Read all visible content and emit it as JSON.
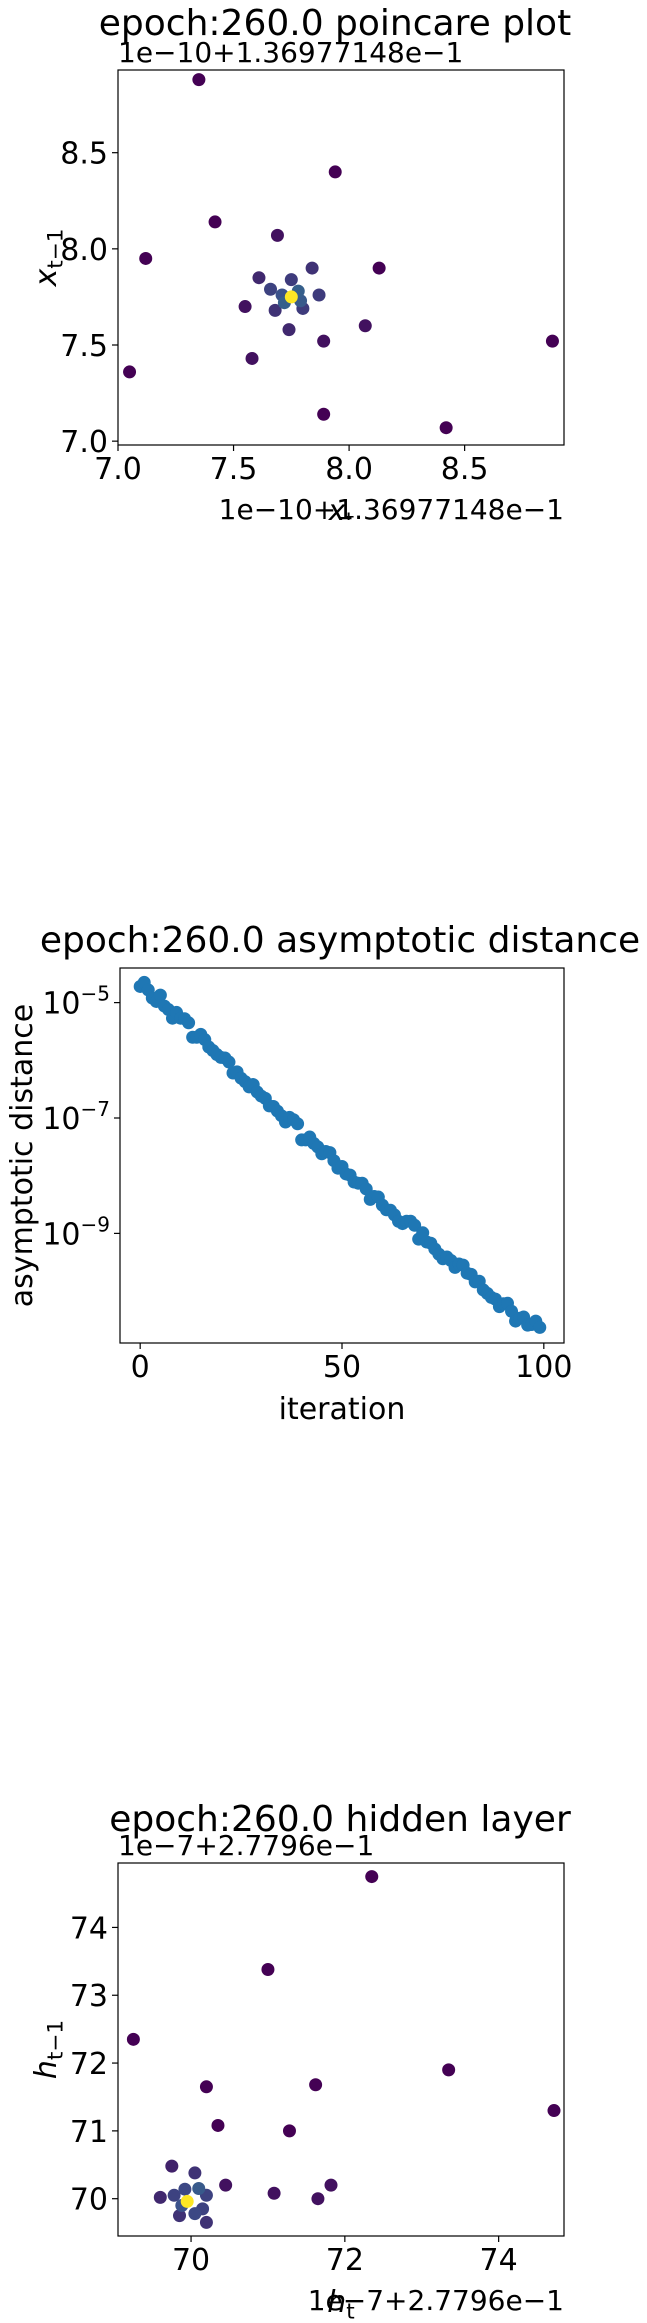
{
  "chart_data": [
    {
      "type": "scatter",
      "title": "epoch:260.0 poincare plot",
      "offset_label_x": "1e−10+1.36977148e−1",
      "offset_label_y": "1e−10+1.36977148e−1",
      "xlabel": "x_t",
      "ylabel": "x_{t−1}",
      "xlim": [
        7.0,
        8.93
      ],
      "ylim": [
        6.98,
        8.93
      ],
      "x_ticks": [
        7.0,
        7.5,
        8.0,
        8.5
      ],
      "x_tick_labels": [
        "7.0",
        "7.5",
        "8.0",
        "8.5"
      ],
      "y_ticks": [
        7.0,
        7.5,
        8.0,
        8.5
      ],
      "y_tick_labels": [
        "7.0",
        "7.5",
        "8.0",
        "8.5"
      ],
      "colormap": "viridis",
      "grid": false,
      "points": [
        {
          "x": 7.35,
          "y": 8.88,
          "c": 0.0
        },
        {
          "x": 7.94,
          "y": 8.4,
          "c": 0.0
        },
        {
          "x": 7.42,
          "y": 8.14,
          "c": 0.0
        },
        {
          "x": 7.12,
          "y": 7.95,
          "c": 0.0
        },
        {
          "x": 8.13,
          "y": 7.9,
          "c": 0.0
        },
        {
          "x": 7.69,
          "y": 8.07,
          "c": 0.05
        },
        {
          "x": 7.55,
          "y": 7.7,
          "c": 0.05
        },
        {
          "x": 7.58,
          "y": 7.43,
          "c": 0.05
        },
        {
          "x": 8.07,
          "y": 7.6,
          "c": 0.05
        },
        {
          "x": 7.89,
          "y": 7.52,
          "c": 0.05
        },
        {
          "x": 7.05,
          "y": 7.36,
          "c": 0.0
        },
        {
          "x": 7.89,
          "y": 7.14,
          "c": 0.0
        },
        {
          "x": 8.42,
          "y": 7.07,
          "c": 0.0
        },
        {
          "x": 8.88,
          "y": 7.52,
          "c": 0.0
        },
        {
          "x": 7.61,
          "y": 7.85,
          "c": 0.12
        },
        {
          "x": 7.84,
          "y": 7.9,
          "c": 0.15
        },
        {
          "x": 7.75,
          "y": 7.84,
          "c": 0.18
        },
        {
          "x": 7.68,
          "y": 7.68,
          "c": 0.15
        },
        {
          "x": 7.8,
          "y": 7.69,
          "c": 0.18
        },
        {
          "x": 7.87,
          "y": 7.76,
          "c": 0.18
        },
        {
          "x": 7.74,
          "y": 7.58,
          "c": 0.12
        },
        {
          "x": 7.66,
          "y": 7.79,
          "c": 0.2
        },
        {
          "x": 7.71,
          "y": 7.76,
          "c": 0.25
        },
        {
          "x": 7.78,
          "y": 7.78,
          "c": 0.3
        },
        {
          "x": 7.72,
          "y": 7.72,
          "c": 0.3
        },
        {
          "x": 7.79,
          "y": 7.73,
          "c": 0.28
        },
        {
          "x": 7.75,
          "y": 7.75,
          "c": 1.0
        }
      ]
    },
    {
      "type": "scatter",
      "title": "epoch:260.0 asymptotic distance",
      "xlabel": "iteration",
      "ylabel": "asymptotic distance",
      "yscale": "log",
      "xlim": [
        -5,
        105
      ],
      "ylim_log10": [
        -10.9,
        -4.4
      ],
      "x_ticks": [
        0,
        50,
        100
      ],
      "x_tick_labels": [
        "0",
        "50",
        "100"
      ],
      "y_ticks_log10": [
        -9,
        -7,
        -5
      ],
      "y_tick_labels": [
        "10⁻⁹",
        "10⁻⁷",
        "10⁻⁵"
      ],
      "color": "#1f77b4",
      "grid": false,
      "series": [
        {
          "x": [
            0,
            1,
            2,
            3,
            4,
            5,
            6,
            7,
            8,
            9,
            10,
            11,
            12,
            13,
            14,
            15,
            16,
            17,
            18,
            19,
            20,
            21,
            22,
            23,
            24,
            25,
            26,
            27,
            28,
            29,
            30,
            31,
            32,
            33,
            34,
            35,
            36,
            37,
            38,
            39,
            40,
            41,
            42,
            43,
            44,
            45,
            46,
            47,
            48,
            49,
            50,
            51,
            52,
            53,
            54,
            55,
            56,
            57,
            58,
            59,
            60,
            61,
            62,
            63,
            64,
            65,
            66,
            67,
            68,
            69,
            70,
            71,
            72,
            73,
            74,
            75,
            76,
            77,
            78,
            79,
            80,
            81,
            82,
            83,
            84,
            85,
            86,
            87,
            88,
            89,
            90,
            91,
            92,
            93,
            94,
            95,
            96,
            97,
            98,
            99
          ],
          "log10_y": [
            -4.72,
            -4.65,
            -4.78,
            -4.92,
            -4.98,
            -4.87,
            -5.06,
            -5.12,
            -5.27,
            -5.17,
            -5.27,
            -5.28,
            -5.35,
            -5.6,
            -5.6,
            -5.55,
            -5.64,
            -5.77,
            -5.83,
            -5.9,
            -5.95,
            -5.96,
            -6.03,
            -6.22,
            -6.2,
            -6.31,
            -6.37,
            -6.46,
            -6.42,
            -6.55,
            -6.62,
            -6.66,
            -6.79,
            -6.8,
            -6.88,
            -6.96,
            -7.07,
            -6.99,
            -7.03,
            -7.1,
            -7.38,
            -7.38,
            -7.33,
            -7.44,
            -7.5,
            -7.62,
            -7.58,
            -7.6,
            -7.74,
            -7.87,
            -7.84,
            -7.97,
            -7.99,
            -8.11,
            -8.13,
            -8.13,
            -8.23,
            -8.41,
            -8.36,
            -8.37,
            -8.51,
            -8.59,
            -8.6,
            -8.68,
            -8.79,
            -8.83,
            -8.79,
            -8.79,
            -8.86,
            -9.1,
            -8.99,
            -9.15,
            -9.17,
            -9.27,
            -9.36,
            -9.44,
            -9.41,
            -9.47,
            -9.59,
            -9.53,
            -9.55,
            -9.69,
            -9.71,
            -9.84,
            -9.83,
            -9.98,
            -10.04,
            -10.11,
            -10.14,
            -10.27,
            -10.22,
            -10.21,
            -10.35,
            -10.52,
            -10.47,
            -10.45,
            -10.59,
            -10.58,
            -10.52,
            -10.63
          ]
        }
      ]
    },
    {
      "type": "scatter",
      "title": "epoch:260.0 hidden layer",
      "offset_label_x": "1e−7+2.7796e−1",
      "offset_label_y": "1e−7+2.7796e−1",
      "xlabel": "h_t",
      "ylabel": "h_{t−1}",
      "xlim": [
        69.05,
        74.85
      ],
      "ylim": [
        69.45,
        74.95
      ],
      "x_ticks": [
        70,
        72,
        74
      ],
      "x_tick_labels": [
        "70",
        "72",
        "74"
      ],
      "y_ticks": [
        70,
        71,
        72,
        73,
        74
      ],
      "y_tick_labels": [
        "70",
        "71",
        "72",
        "73",
        "74"
      ],
      "colormap": "viridis",
      "grid": false,
      "points": [
        {
          "x": 72.35,
          "y": 74.75,
          "c": 0.0
        },
        {
          "x": 71.0,
          "y": 73.38,
          "c": 0.0
        },
        {
          "x": 69.25,
          "y": 72.35,
          "c": 0.0
        },
        {
          "x": 73.35,
          "y": 71.9,
          "c": 0.0
        },
        {
          "x": 74.72,
          "y": 71.3,
          "c": 0.0
        },
        {
          "x": 70.2,
          "y": 71.65,
          "c": 0.0
        },
        {
          "x": 71.62,
          "y": 71.68,
          "c": 0.0
        },
        {
          "x": 70.35,
          "y": 71.08,
          "c": 0.0
        },
        {
          "x": 71.28,
          "y": 71.0,
          "c": 0.0
        },
        {
          "x": 70.45,
          "y": 70.2,
          "c": 0.05
        },
        {
          "x": 71.08,
          "y": 70.08,
          "c": 0.05
        },
        {
          "x": 71.82,
          "y": 70.2,
          "c": 0.05
        },
        {
          "x": 71.65,
          "y": 70.0,
          "c": 0.05
        },
        {
          "x": 69.75,
          "y": 70.48,
          "c": 0.1
        },
        {
          "x": 69.6,
          "y": 70.02,
          "c": 0.12
        },
        {
          "x": 70.2,
          "y": 69.65,
          "c": 0.15
        },
        {
          "x": 70.05,
          "y": 70.38,
          "c": 0.15
        },
        {
          "x": 69.85,
          "y": 69.75,
          "c": 0.15
        },
        {
          "x": 69.78,
          "y": 70.05,
          "c": 0.2
        },
        {
          "x": 70.15,
          "y": 69.85,
          "c": 0.2
        },
        {
          "x": 70.2,
          "y": 70.05,
          "c": 0.2
        },
        {
          "x": 69.92,
          "y": 70.14,
          "c": 0.22
        },
        {
          "x": 70.05,
          "y": 69.78,
          "c": 0.22
        },
        {
          "x": 69.88,
          "y": 69.9,
          "c": 0.25
        },
        {
          "x": 70.1,
          "y": 70.15,
          "c": 0.28
        },
        {
          "x": 69.95,
          "y": 69.96,
          "c": 1.0
        }
      ]
    }
  ]
}
